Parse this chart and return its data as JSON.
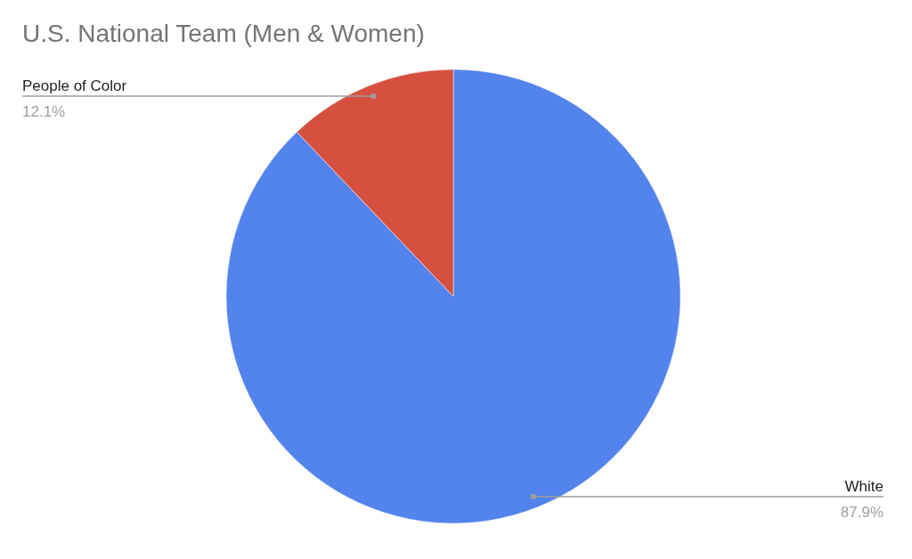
{
  "chart_data": {
    "type": "pie",
    "title": "U.S. National Team (Men & Women)",
    "categories": [
      "White",
      "People of Color"
    ],
    "values": [
      87.9,
      12.1
    ],
    "colors": [
      "#5383ec",
      "#d65040"
    ],
    "value_labels": [
      "87.9%",
      "12.1%"
    ]
  }
}
